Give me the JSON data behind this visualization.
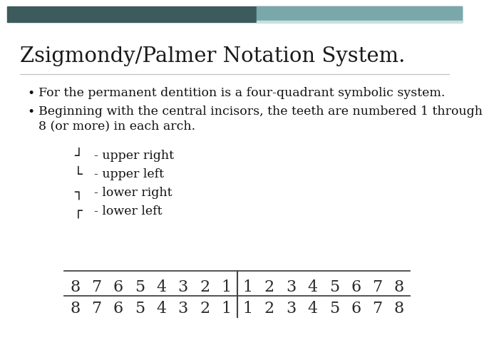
{
  "title": "Zsigmondy/Palmer Notation System.",
  "title_fontsize": 21,
  "title_color": "#1a1a1a",
  "bg_color": "#ffffff",
  "content_color": "#111111",
  "bullet1": "For the permanent dentition is a four-quadrant symbolic system.",
  "bullet2_line1": "Beginning with the central incisors, the teeth are numbered 1 through",
  "bullet2_line2": "8 (or more) in each arch.",
  "bullet_fontsize": 12.5,
  "symbols": [
    [
      "┘",
      "- upper right"
    ],
    [
      "└",
      "- upper left"
    ],
    [
      "┐",
      "- lower right"
    ],
    [
      "┌",
      "- lower left"
    ]
  ],
  "symbol_fontsize": 13,
  "numbers_top": [
    "8",
    "7",
    "6",
    "5",
    "4",
    "3",
    "2",
    "1",
    "1",
    "2",
    "3",
    "4",
    "5",
    "6",
    "7",
    "8"
  ],
  "numbers_bottom": [
    "8",
    "7",
    "6",
    "5",
    "4",
    "3",
    "2",
    "1",
    "1",
    "2",
    "3",
    "4",
    "5",
    "6",
    "7",
    "8"
  ],
  "number_fontsize": 16,
  "number_color": "#2a2a2a",
  "header_dark_color": "#3d5a5c",
  "header_light_color": "#7aa8aa",
  "header_line_color": "#c8dfe0"
}
